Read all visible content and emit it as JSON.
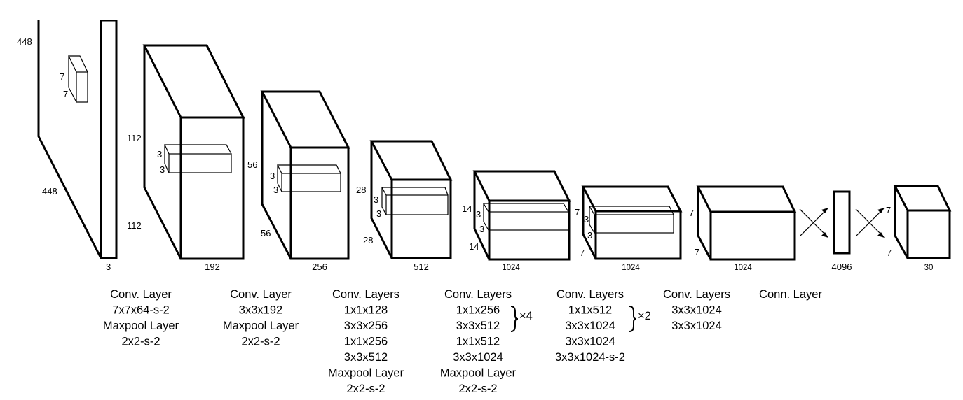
{
  "layers": [
    {
      "dims": {
        "height": "448",
        "width": "448",
        "depth": "3"
      },
      "kernel": {
        "h": "7",
        "w": "7"
      },
      "caption": [
        "Conv. Layer",
        "7x7x64-s-2",
        "Maxpool Layer",
        "2x2-s-2"
      ]
    },
    {
      "dims": {
        "height": "112",
        "width": "112",
        "depth": "192"
      },
      "kernel": {
        "h": "3",
        "w": "3"
      },
      "caption": [
        "Conv. Layer",
        "3x3x192",
        "Maxpool Layer",
        "2x2-s-2"
      ]
    },
    {
      "dims": {
        "height": "56",
        "width": "56",
        "depth": "256"
      },
      "kernel": {
        "h": "3",
        "w": "3"
      },
      "caption": [
        "Conv. Layers",
        "1x1x128",
        "3x3x256",
        "1x1x256",
        "3x3x512",
        "Maxpool Layer",
        "2x2-s-2"
      ]
    },
    {
      "dims": {
        "height": "28",
        "width": "28",
        "depth": "512"
      },
      "kernel": {
        "h": "3",
        "w": "3"
      },
      "caption": [
        "Conv. Layers",
        "1x1x256",
        "3x3x512",
        "1x1x512",
        "3x3x1024",
        "Maxpool Layer",
        "2x2-s-2"
      ],
      "repeat": "×4"
    },
    {
      "dims": {
        "height": "14",
        "width": "14",
        "depth": "1024"
      },
      "kernel": {
        "h": "3",
        "w": "3"
      },
      "caption": [
        "Conv. Layers",
        "1x1x512",
        "3x3x1024",
        "3x3x1024",
        "3x3x1024-s-2"
      ],
      "repeat": "×2"
    },
    {
      "dims": {
        "height": "7",
        "width": "7",
        "depth": "1024"
      },
      "kernel": {
        "h": "3",
        "w": "3"
      },
      "caption": [
        "Conv. Layers",
        "3x3x1024",
        "3x3x1024"
      ]
    },
    {
      "dims": {
        "height": "7",
        "width": "7",
        "depth": "1024"
      },
      "caption": [
        "Conn. Layer"
      ]
    },
    {
      "dims": {
        "depth": "4096"
      },
      "caption": [
        "Conn. Layer"
      ]
    },
    {
      "dims": {
        "height": "7",
        "width": "7",
        "depth": "30"
      }
    }
  ]
}
